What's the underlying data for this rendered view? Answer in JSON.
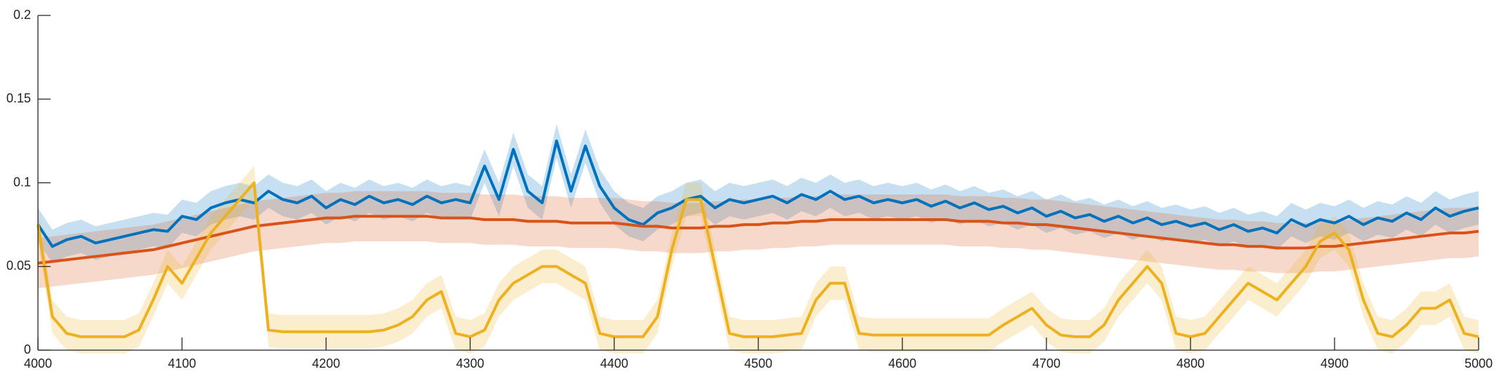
{
  "chart_data": {
    "type": "line",
    "x": [
      4000,
      4010,
      4020,
      4030,
      4040,
      4050,
      4060,
      4070,
      4080,
      4090,
      4100,
      4110,
      4120,
      4130,
      4140,
      4150,
      4160,
      4170,
      4180,
      4190,
      4200,
      4210,
      4220,
      4230,
      4240,
      4250,
      4260,
      4270,
      4280,
      4290,
      4300,
      4310,
      4320,
      4330,
      4340,
      4350,
      4360,
      4370,
      4380,
      4390,
      4400,
      4410,
      4420,
      4430,
      4440,
      4450,
      4460,
      4470,
      4480,
      4490,
      4500,
      4510,
      4520,
      4530,
      4540,
      4550,
      4560,
      4570,
      4580,
      4590,
      4600,
      4610,
      4620,
      4630,
      4640,
      4650,
      4660,
      4670,
      4680,
      4690,
      4700,
      4710,
      4720,
      4730,
      4740,
      4750,
      4760,
      4770,
      4780,
      4790,
      4800,
      4810,
      4820,
      4830,
      4840,
      4850,
      4860,
      4870,
      4880,
      4890,
      4900,
      4910,
      4920,
      4930,
      4940,
      4950,
      4960,
      4970,
      4980,
      4990,
      5000
    ],
    "series": [
      {
        "color": "#0072bd",
        "band": 0.01,
        "values": [
          0.075,
          0.062,
          0.066,
          0.068,
          0.064,
          0.066,
          0.068,
          0.07,
          0.072,
          0.071,
          0.08,
          0.078,
          0.085,
          0.088,
          0.09,
          0.088,
          0.095,
          0.09,
          0.088,
          0.092,
          0.085,
          0.09,
          0.087,
          0.092,
          0.088,
          0.09,
          0.087,
          0.092,
          0.088,
          0.09,
          0.088,
          0.11,
          0.09,
          0.12,
          0.095,
          0.088,
          0.125,
          0.095,
          0.122,
          0.098,
          0.085,
          0.078,
          0.075,
          0.082,
          0.085,
          0.09,
          0.092,
          0.085,
          0.09,
          0.088,
          0.09,
          0.092,
          0.088,
          0.093,
          0.09,
          0.095,
          0.09,
          0.092,
          0.088,
          0.09,
          0.088,
          0.09,
          0.086,
          0.089,
          0.085,
          0.088,
          0.084,
          0.086,
          0.082,
          0.085,
          0.08,
          0.083,
          0.079,
          0.081,
          0.077,
          0.08,
          0.076,
          0.079,
          0.075,
          0.077,
          0.074,
          0.076,
          0.072,
          0.075,
          0.071,
          0.073,
          0.07,
          0.078,
          0.074,
          0.078,
          0.076,
          0.08,
          0.075,
          0.079,
          0.077,
          0.082,
          0.078,
          0.085,
          0.08,
          0.083,
          0.085
        ]
      },
      {
        "color": "#d95319",
        "band": 0.015,
        "values": [
          0.052,
          0.053,
          0.054,
          0.055,
          0.056,
          0.057,
          0.058,
          0.059,
          0.06,
          0.062,
          0.064,
          0.066,
          0.068,
          0.07,
          0.072,
          0.074,
          0.075,
          0.076,
          0.077,
          0.078,
          0.079,
          0.079,
          0.08,
          0.08,
          0.08,
          0.08,
          0.08,
          0.08,
          0.079,
          0.079,
          0.079,
          0.078,
          0.078,
          0.078,
          0.077,
          0.077,
          0.077,
          0.076,
          0.076,
          0.076,
          0.076,
          0.075,
          0.074,
          0.074,
          0.073,
          0.073,
          0.073,
          0.074,
          0.074,
          0.075,
          0.075,
          0.076,
          0.076,
          0.077,
          0.077,
          0.078,
          0.078,
          0.078,
          0.078,
          0.078,
          0.078,
          0.078,
          0.078,
          0.078,
          0.077,
          0.077,
          0.077,
          0.076,
          0.076,
          0.075,
          0.075,
          0.074,
          0.073,
          0.072,
          0.071,
          0.07,
          0.069,
          0.068,
          0.067,
          0.066,
          0.065,
          0.064,
          0.063,
          0.063,
          0.062,
          0.062,
          0.061,
          0.061,
          0.061,
          0.062,
          0.062,
          0.063,
          0.064,
          0.065,
          0.066,
          0.067,
          0.068,
          0.069,
          0.07,
          0.07,
          0.071
        ]
      },
      {
        "color": "#edb120",
        "band": 0.01,
        "values": [
          0.075,
          0.02,
          0.01,
          0.008,
          0.008,
          0.008,
          0.008,
          0.012,
          0.03,
          0.05,
          0.04,
          0.055,
          0.07,
          0.08,
          0.09,
          0.1,
          0.012,
          0.011,
          0.011,
          0.011,
          0.011,
          0.011,
          0.011,
          0.011,
          0.012,
          0.015,
          0.02,
          0.03,
          0.035,
          0.01,
          0.008,
          0.012,
          0.03,
          0.04,
          0.045,
          0.05,
          0.05,
          0.045,
          0.04,
          0.01,
          0.008,
          0.008,
          0.008,
          0.02,
          0.06,
          0.09,
          0.09,
          0.05,
          0.01,
          0.008,
          0.008,
          0.008,
          0.009,
          0.01,
          0.03,
          0.04,
          0.04,
          0.01,
          0.009,
          0.009,
          0.009,
          0.009,
          0.009,
          0.009,
          0.009,
          0.009,
          0.009,
          0.015,
          0.02,
          0.025,
          0.015,
          0.009,
          0.008,
          0.008,
          0.015,
          0.03,
          0.04,
          0.05,
          0.04,
          0.01,
          0.008,
          0.01,
          0.02,
          0.03,
          0.04,
          0.035,
          0.03,
          0.04,
          0.05,
          0.065,
          0.07,
          0.06,
          0.03,
          0.01,
          0.008,
          0.015,
          0.025,
          0.025,
          0.03,
          0.01,
          0.008
        ]
      }
    ],
    "xlim": [
      4000,
      5000
    ],
    "xticks": [
      4000,
      4100,
      4200,
      4300,
      4400,
      4500,
      4600,
      4700,
      4800,
      4900,
      5000
    ],
    "ylim": [
      0,
      0.2
    ],
    "yticks": [
      0,
      0.05,
      0.1,
      0.15,
      0.2
    ]
  }
}
